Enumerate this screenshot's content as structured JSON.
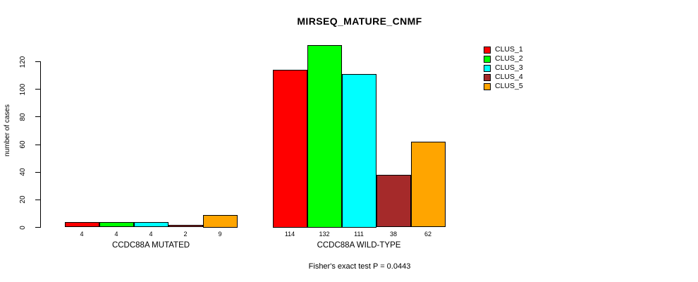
{
  "chart_data": {
    "type": "bar",
    "title": "MIRSEQ_MATURE_CNMF",
    "ylabel": "number of cases",
    "xlabel": "",
    "ylim": [
      0,
      120
    ],
    "yticks": [
      0,
      20,
      40,
      60,
      80,
      100,
      120
    ],
    "grid": false,
    "bar_border_color": "#000000",
    "series": [
      {
        "name": "CLUS_1",
        "color": "#ff0000"
      },
      {
        "name": "CLUS_2",
        "color": "#00ff00"
      },
      {
        "name": "CLUS_3",
        "color": "#00ffff"
      },
      {
        "name": "CLUS_4",
        "color": "#a52a2a"
      },
      {
        "name": "CLUS_5",
        "color": "#ffa500"
      }
    ],
    "groups": [
      {
        "label": "CCDC88A MUTATED",
        "values": [
          4,
          4,
          4,
          2,
          9
        ]
      },
      {
        "label": "CCDC88A WILD-TYPE",
        "values": [
          114,
          132,
          111,
          38,
          62
        ]
      }
    ],
    "legend": {
      "position": "top-right",
      "entries": [
        "CLUS_1",
        "CLUS_2",
        "CLUS_3",
        "CLUS_4",
        "CLUS_5"
      ]
    },
    "footnote": "Fisher's exact test P = 0.0443"
  }
}
